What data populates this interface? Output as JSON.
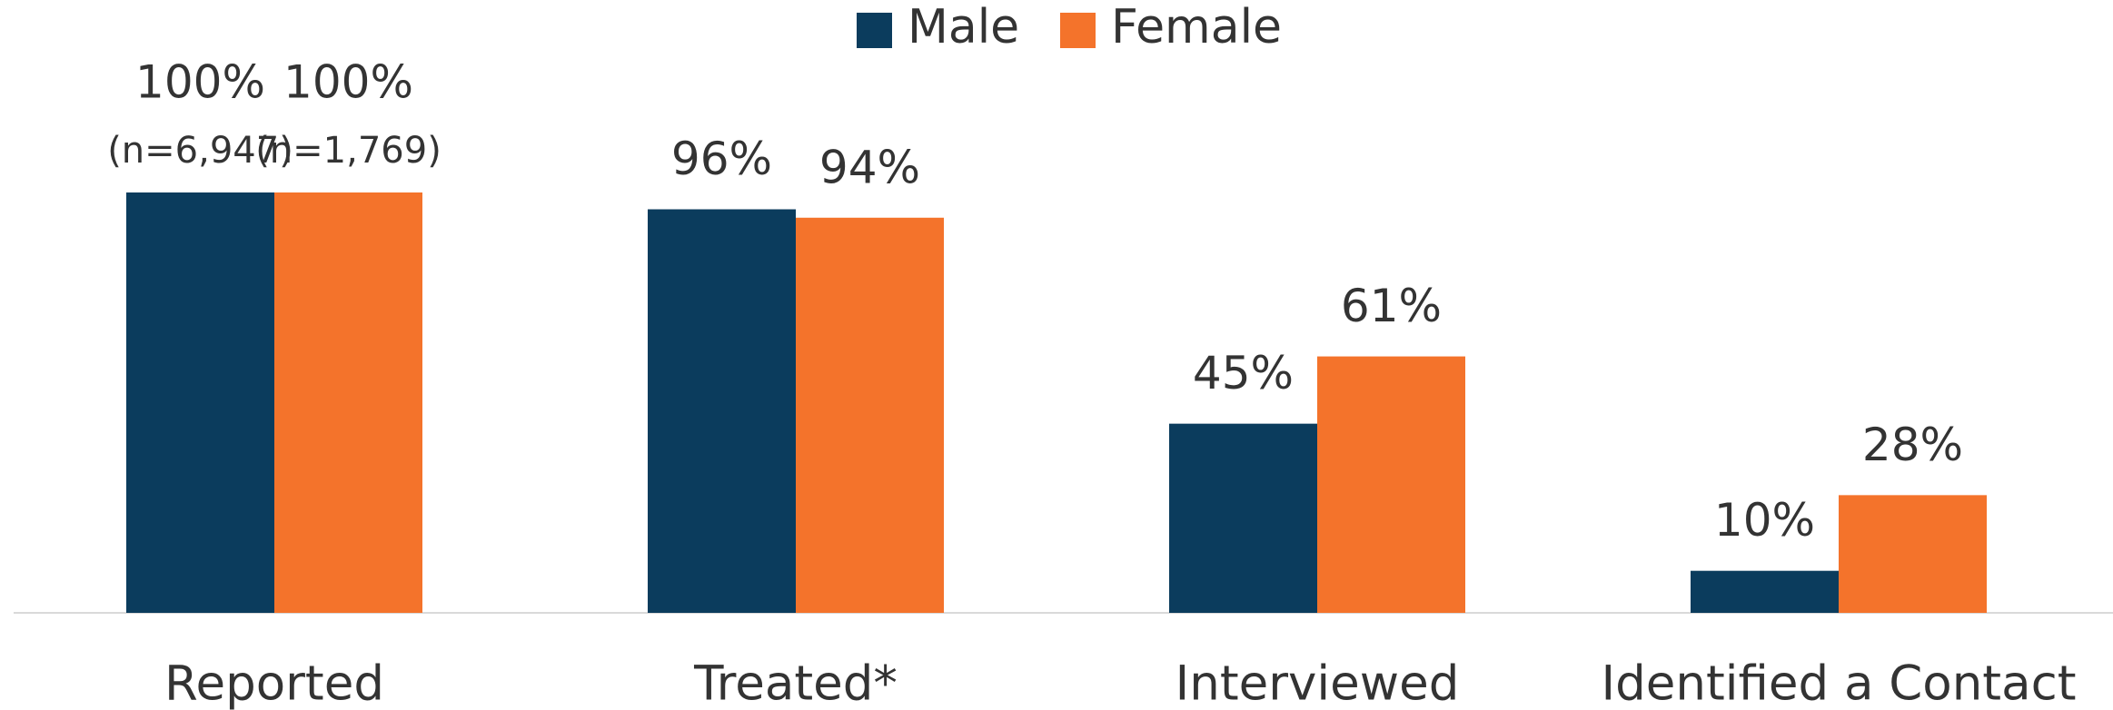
{
  "chart_data": {
    "type": "bar",
    "categories": [
      "Reported",
      "Treated*",
      "Interviewed",
      "Identified a Contact"
    ],
    "series": [
      {
        "name": "Male",
        "color": "#0b3c5d",
        "values": [
          100,
          96,
          45,
          10
        ],
        "value_labels": [
          "100%",
          "96%",
          "45%",
          "10%"
        ]
      },
      {
        "name": "Female",
        "color": "#f4732b",
        "values": [
          100,
          94,
          61,
          28
        ],
        "value_labels": [
          "100%",
          "94%",
          "61%",
          "28%"
        ]
      }
    ],
    "annotations": [
      "(n=6,947)",
      "(n=1,769)"
    ],
    "ylim": [
      0,
      100
    ],
    "legend": "top"
  }
}
